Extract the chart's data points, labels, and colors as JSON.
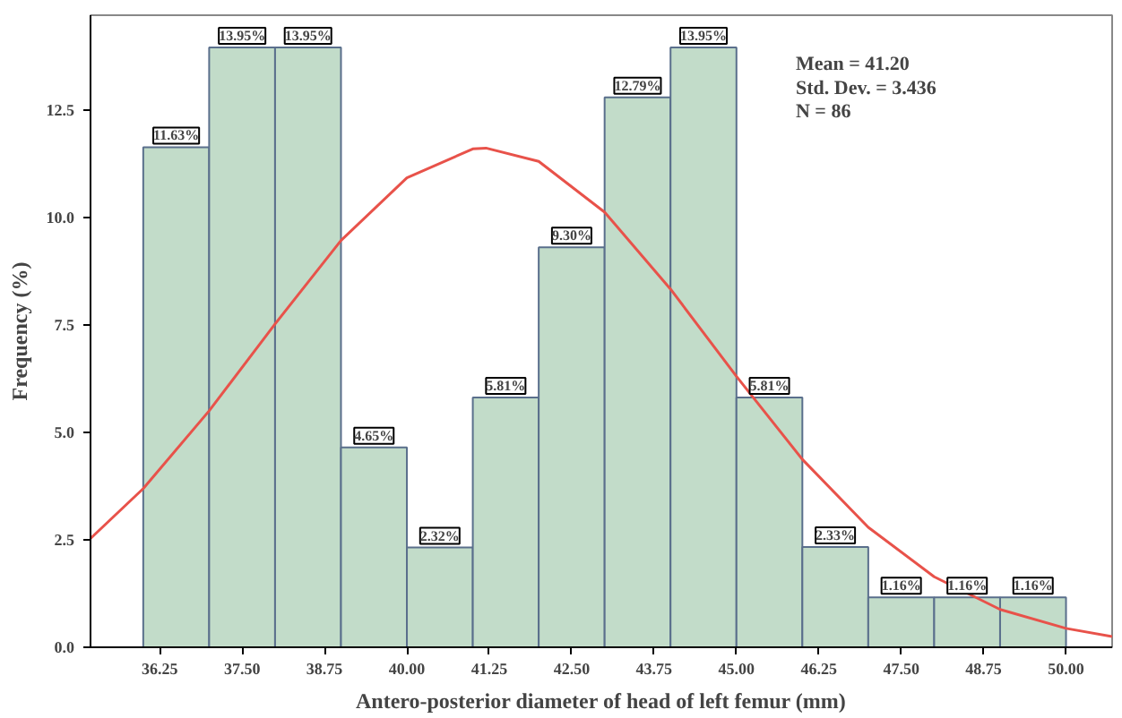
{
  "chart_data": {
    "type": "histogram",
    "xlabel": "Antero-posterior diameter of head of left femur (mm)",
    "ylabel": "Frequency (%)",
    "bins": [
      36,
      37,
      38,
      39,
      40,
      41,
      42,
      43,
      44,
      45,
      46,
      47,
      48,
      49,
      50
    ],
    "values": [
      11.63,
      13.95,
      13.95,
      4.65,
      2.32,
      5.81,
      9.3,
      12.79,
      13.95,
      5.81,
      2.33,
      1.16,
      1.16,
      1.16
    ],
    "value_labels": [
      "11.63%",
      "13.95%",
      "13.95%",
      "4.65%",
      "2.32%",
      "5.81%",
      "9.30%",
      "12.79%",
      "13.95%",
      "5.81%",
      "2.33%",
      "1.16%",
      "1.16%",
      "1.16%"
    ],
    "color": "#c2dcc9",
    "series": [
      {
        "type": "line",
        "color": "#e8524a",
        "x": [
          35.2,
          36,
          37,
          38,
          39,
          40,
          41,
          41.2,
          42,
          43,
          44,
          45,
          46,
          47,
          48,
          49,
          50,
          50.7
        ],
        "values": [
          2.53,
          3.69,
          5.5,
          7.52,
          9.46,
          10.92,
          11.59,
          11.61,
          11.3,
          10.12,
          8.33,
          6.3,
          4.37,
          2.79,
          1.64,
          0.88,
          0.44,
          0.25
        ]
      }
    ],
    "xlim": [
      35.2,
      50.7
    ],
    "ylim": [
      0,
      14.7
    ],
    "xticks": [
      36.25,
      {
        "value": 37.5,
        "label": "37.50"
      },
      38.75,
      {
        "value": 40,
        "label": "40.00"
      },
      41.25,
      {
        "value": 42.5,
        "label": "42.50"
      },
      43.75,
      {
        "value": 45,
        "label": "45.00"
      },
      46.25,
      {
        "value": 47.5,
        "label": "47.50"
      },
      48.75,
      {
        "value": 50,
        "label": "50.00"
      }
    ],
    "yticks": [
      {
        "value": 0,
        "label": "0.0"
      },
      2.5,
      {
        "value": 5,
        "label": "5.0"
      },
      7.5,
      {
        "value": 10,
        "label": "10.0"
      },
      12.5
    ],
    "annotations": [
      "Mean = 41.20",
      "Std. Dev. = 3.436",
      "N = 86"
    ],
    "grid": false
  }
}
